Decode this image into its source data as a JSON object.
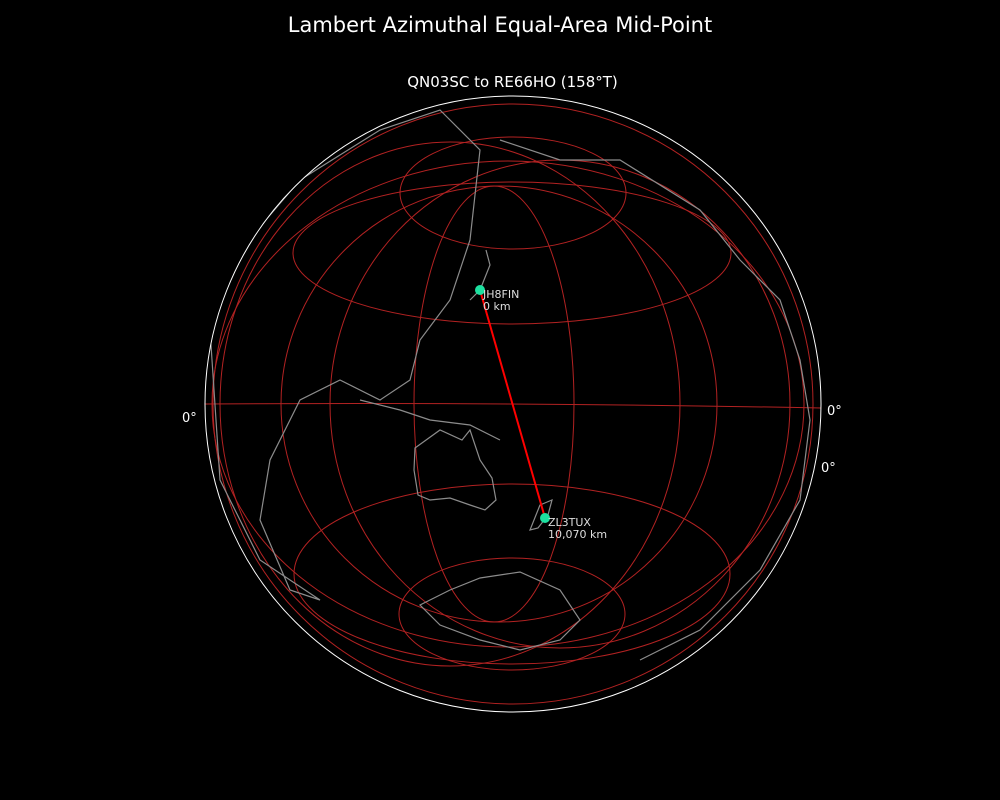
{
  "title": "Lambert Azimuthal Equal-Area Mid-Point",
  "subtitle": "QN03SC to RE66HO (158°T)",
  "colors": {
    "background": "#000000",
    "graticule": "#b22222",
    "coastline": "#8c8c8c",
    "path": "#ff0000",
    "station": "#1de0a0",
    "limb": "#ffffff"
  },
  "graticule_labels": {
    "left": "0°",
    "right": "0°",
    "right_lower": "0°"
  },
  "stations": [
    {
      "call": "JH8FIN",
      "distance": "0 km"
    },
    {
      "call": "ZL3TUX",
      "distance": "10,070 km"
    }
  ]
}
